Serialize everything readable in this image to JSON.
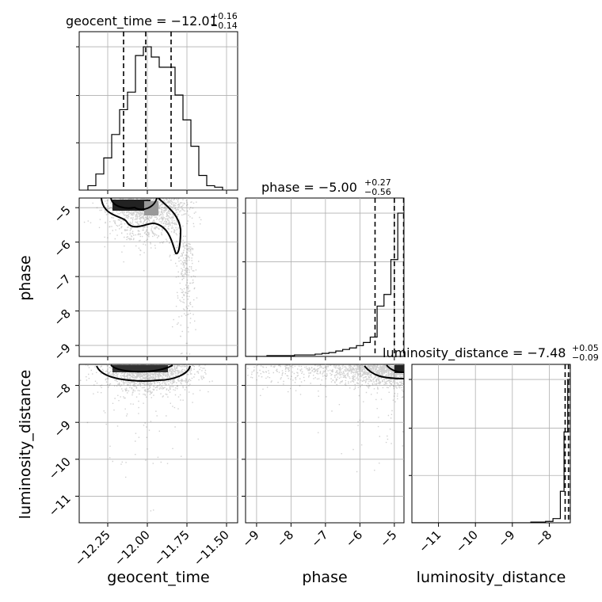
{
  "chart_data": {
    "type": "corner",
    "parameters": [
      "geocent_time",
      "phase",
      "luminosity_distance"
    ],
    "titles": [
      {
        "param": "geocent_time",
        "text": "geocent_time = −12.01",
        "upper": "+0.16",
        "lower": "−0.14"
      },
      {
        "param": "phase",
        "text": "phase = −5.00",
        "upper": "+0.27",
        "lower": "−0.56"
      },
      {
        "param": "luminosity_distance",
        "text": "luminosity_distance = −7.48",
        "upper": "+0.05",
        "lower": "−0.09"
      }
    ],
    "ranges": {
      "geocent_time": [
        -12.43,
        -11.43
      ],
      "phase": [
        -9.32,
        -4.72
      ],
      "luminosity_distance": [
        -11.72,
        -7.43
      ]
    },
    "ticks": {
      "geocent_time": {
        "values": [
          -12.25,
          -12.0,
          -11.75,
          -11.5
        ],
        "labels": [
          "−12.25",
          "−12.00",
          "−11.75",
          "−11.50"
        ]
      },
      "phase": {
        "values": [
          -9,
          -8,
          -7,
          -6,
          -5
        ],
        "labels": [
          "−9",
          "−8",
          "−7",
          "−6",
          "−5"
        ]
      },
      "luminosity_distance": {
        "values": [
          -11,
          -10,
          -9,
          -8
        ],
        "labels": [
          "−11",
          "−10",
          "−9",
          "−8"
        ]
      }
    },
    "quantiles": {
      "geocent_time": [
        -12.15,
        -12.01,
        -11.85
      ],
      "phase": [
        -5.56,
        -5.0,
        -4.73
      ],
      "luminosity_distance": [
        -7.57,
        -7.48,
        -7.43
      ]
    },
    "histograms": {
      "geocent_time": {
        "edges": [
          -12.375,
          -12.325,
          -12.275,
          -12.225,
          -12.175,
          -12.125,
          -12.075,
          -12.025,
          -11.975,
          -11.925,
          -11.875,
          -11.825,
          -11.775,
          -11.725,
          -11.675,
          -11.625,
          -11.575,
          -11.525
        ],
        "counts": [
          3,
          11,
          22,
          38,
          55,
          67,
          92,
          98,
          91,
          84,
          84,
          65,
          48,
          30,
          10,
          3,
          2,
          0
        ]
      },
      "phase": {
        "edges": [
          -9.32,
          -9.1,
          -8.9,
          -8.7,
          -8.5,
          -8.3,
          -8.1,
          -7.9,
          -7.7,
          -7.5,
          -7.3,
          -7.1,
          -6.9,
          -6.7,
          -6.5,
          -6.3,
          -6.1,
          -5.9,
          -5.7,
          -5.5,
          -5.3,
          -5.1,
          -4.9,
          -4.72
        ],
        "counts": [
          0,
          0,
          0,
          1,
          1,
          1,
          1,
          2,
          2,
          2,
          3,
          4,
          5,
          7,
          9,
          11,
          14,
          18,
          25,
          65,
          80,
          125,
          185
        ]
      },
      "luminosity_distance": {
        "edges": [
          -11.72,
          -11.5,
          -11.3,
          -11.1,
          -10.9,
          -10.7,
          -10.5,
          -10.3,
          -10.1,
          -9.9,
          -9.7,
          -9.5,
          -9.3,
          -9.1,
          -8.9,
          -8.7,
          -8.5,
          -8.3,
          -8.1,
          -7.9,
          -7.7,
          -7.6,
          -7.5,
          -7.43
        ],
        "counts": [
          0,
          0,
          0,
          0,
          0,
          0,
          0,
          0,
          0,
          0,
          0,
          0,
          0,
          0,
          0,
          0,
          1,
          1,
          2,
          6,
          45,
          130,
          205
        ]
      }
    },
    "scatter": {
      "phase_vs_geocent_time": {
        "x_center": -12.0,
        "x_spread": 0.12,
        "y_mode": -4.9,
        "tail_x": -11.76,
        "tail_y_min": -9.2
      },
      "luminosity_distance_vs_geocent_time": {
        "x_center": -12.0,
        "x_spread": 0.14,
        "y_mode": -7.5,
        "y_min": -11.3
      },
      "luminosity_distance_vs_phase": {
        "x_min": -9.2,
        "x_max": -4.72,
        "y_mode": -7.5,
        "y_min": -10.0
      }
    },
    "colors": {
      "line": "#000000",
      "points": "#555555",
      "grid": "#b0b0b0"
    },
    "grid": true
  }
}
